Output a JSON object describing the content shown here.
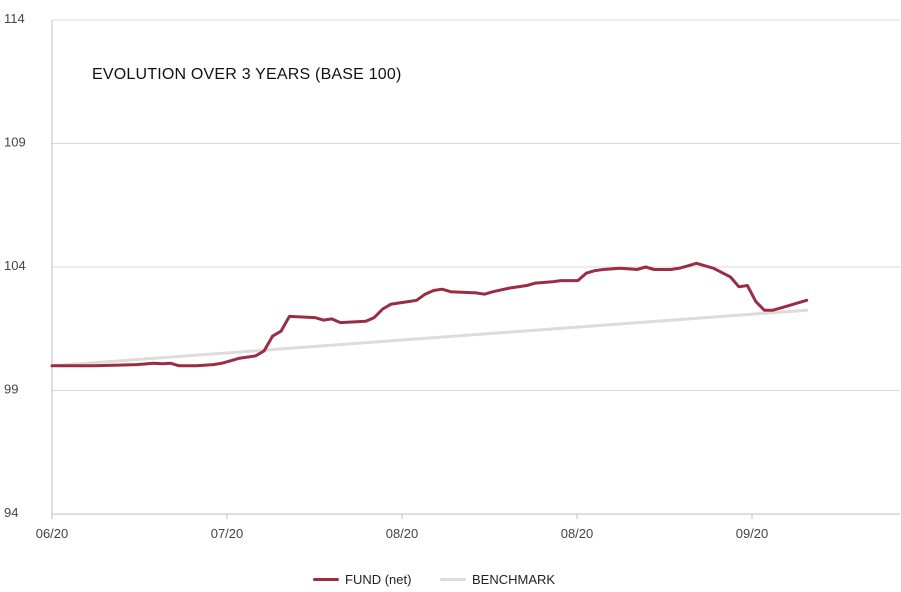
{
  "chart_data": {
    "type": "line",
    "title": "EVOLUTION OVER 3 YEARS (BASE 100)",
    "xlabel": "",
    "ylabel": "",
    "ylim": [
      94,
      114
    ],
    "yticks": [
      94,
      99,
      104,
      109,
      114
    ],
    "xticks": [
      "06/20",
      "07/20",
      "08/20",
      "08/20",
      "09/20"
    ],
    "grid": true,
    "legend_placement": "bottom-center",
    "x_range": [
      0,
      100
    ],
    "series": [
      {
        "name": "FUND (net)",
        "color": "#9b2c45",
        "points": [
          [
            0,
            100.0
          ],
          [
            5,
            100.0
          ],
          [
            10,
            100.05
          ],
          [
            12,
            100.1
          ],
          [
            13,
            100.08
          ],
          [
            14,
            100.1
          ],
          [
            15,
            100.0
          ],
          [
            17,
            100.0
          ],
          [
            19,
            100.05
          ],
          [
            20,
            100.1
          ],
          [
            21,
            100.2
          ],
          [
            22,
            100.3
          ],
          [
            24,
            100.4
          ],
          [
            25,
            100.6
          ],
          [
            26,
            101.2
          ],
          [
            27,
            101.4
          ],
          [
            28,
            102.0
          ],
          [
            31,
            101.95
          ],
          [
            32,
            101.85
          ],
          [
            33,
            101.9
          ],
          [
            34,
            101.75
          ],
          [
            37,
            101.8
          ],
          [
            38,
            101.95
          ],
          [
            39,
            102.3
          ],
          [
            40,
            102.5
          ],
          [
            42,
            102.6
          ],
          [
            43,
            102.65
          ],
          [
            44,
            102.9
          ],
          [
            45,
            103.05
          ],
          [
            46,
            103.1
          ],
          [
            47,
            103.0
          ],
          [
            50,
            102.95
          ],
          [
            51,
            102.9
          ],
          [
            52,
            103.0
          ],
          [
            54,
            103.15
          ],
          [
            56,
            103.25
          ],
          [
            57,
            103.35
          ],
          [
            59,
            103.4
          ],
          [
            60,
            103.45
          ],
          [
            62,
            103.45
          ],
          [
            63,
            103.75
          ],
          [
            64,
            103.85
          ],
          [
            65,
            103.9
          ],
          [
            67,
            103.95
          ],
          [
            69,
            103.9
          ],
          [
            70,
            104.0
          ],
          [
            71,
            103.9
          ],
          [
            73,
            103.9
          ],
          [
            74,
            103.95
          ],
          [
            75,
            104.05
          ],
          [
            76,
            104.15
          ],
          [
            77,
            104.05
          ],
          [
            78,
            103.95
          ],
          [
            80,
            103.6
          ],
          [
            81,
            103.2
          ],
          [
            82,
            103.25
          ],
          [
            83,
            102.6
          ],
          [
            84,
            102.25
          ],
          [
            85,
            102.25
          ],
          [
            86,
            102.35
          ],
          [
            87,
            102.45
          ],
          [
            88,
            102.55
          ],
          [
            89,
            102.65
          ]
        ]
      },
      {
        "name": "BENCHMARK",
        "color": "#dcdcdc",
        "points": [
          [
            0,
            100.0
          ],
          [
            89,
            102.25
          ]
        ]
      }
    ]
  },
  "legend": {
    "fund_label": "FUND (net)",
    "benchmark_label": "BENCHMARK"
  }
}
